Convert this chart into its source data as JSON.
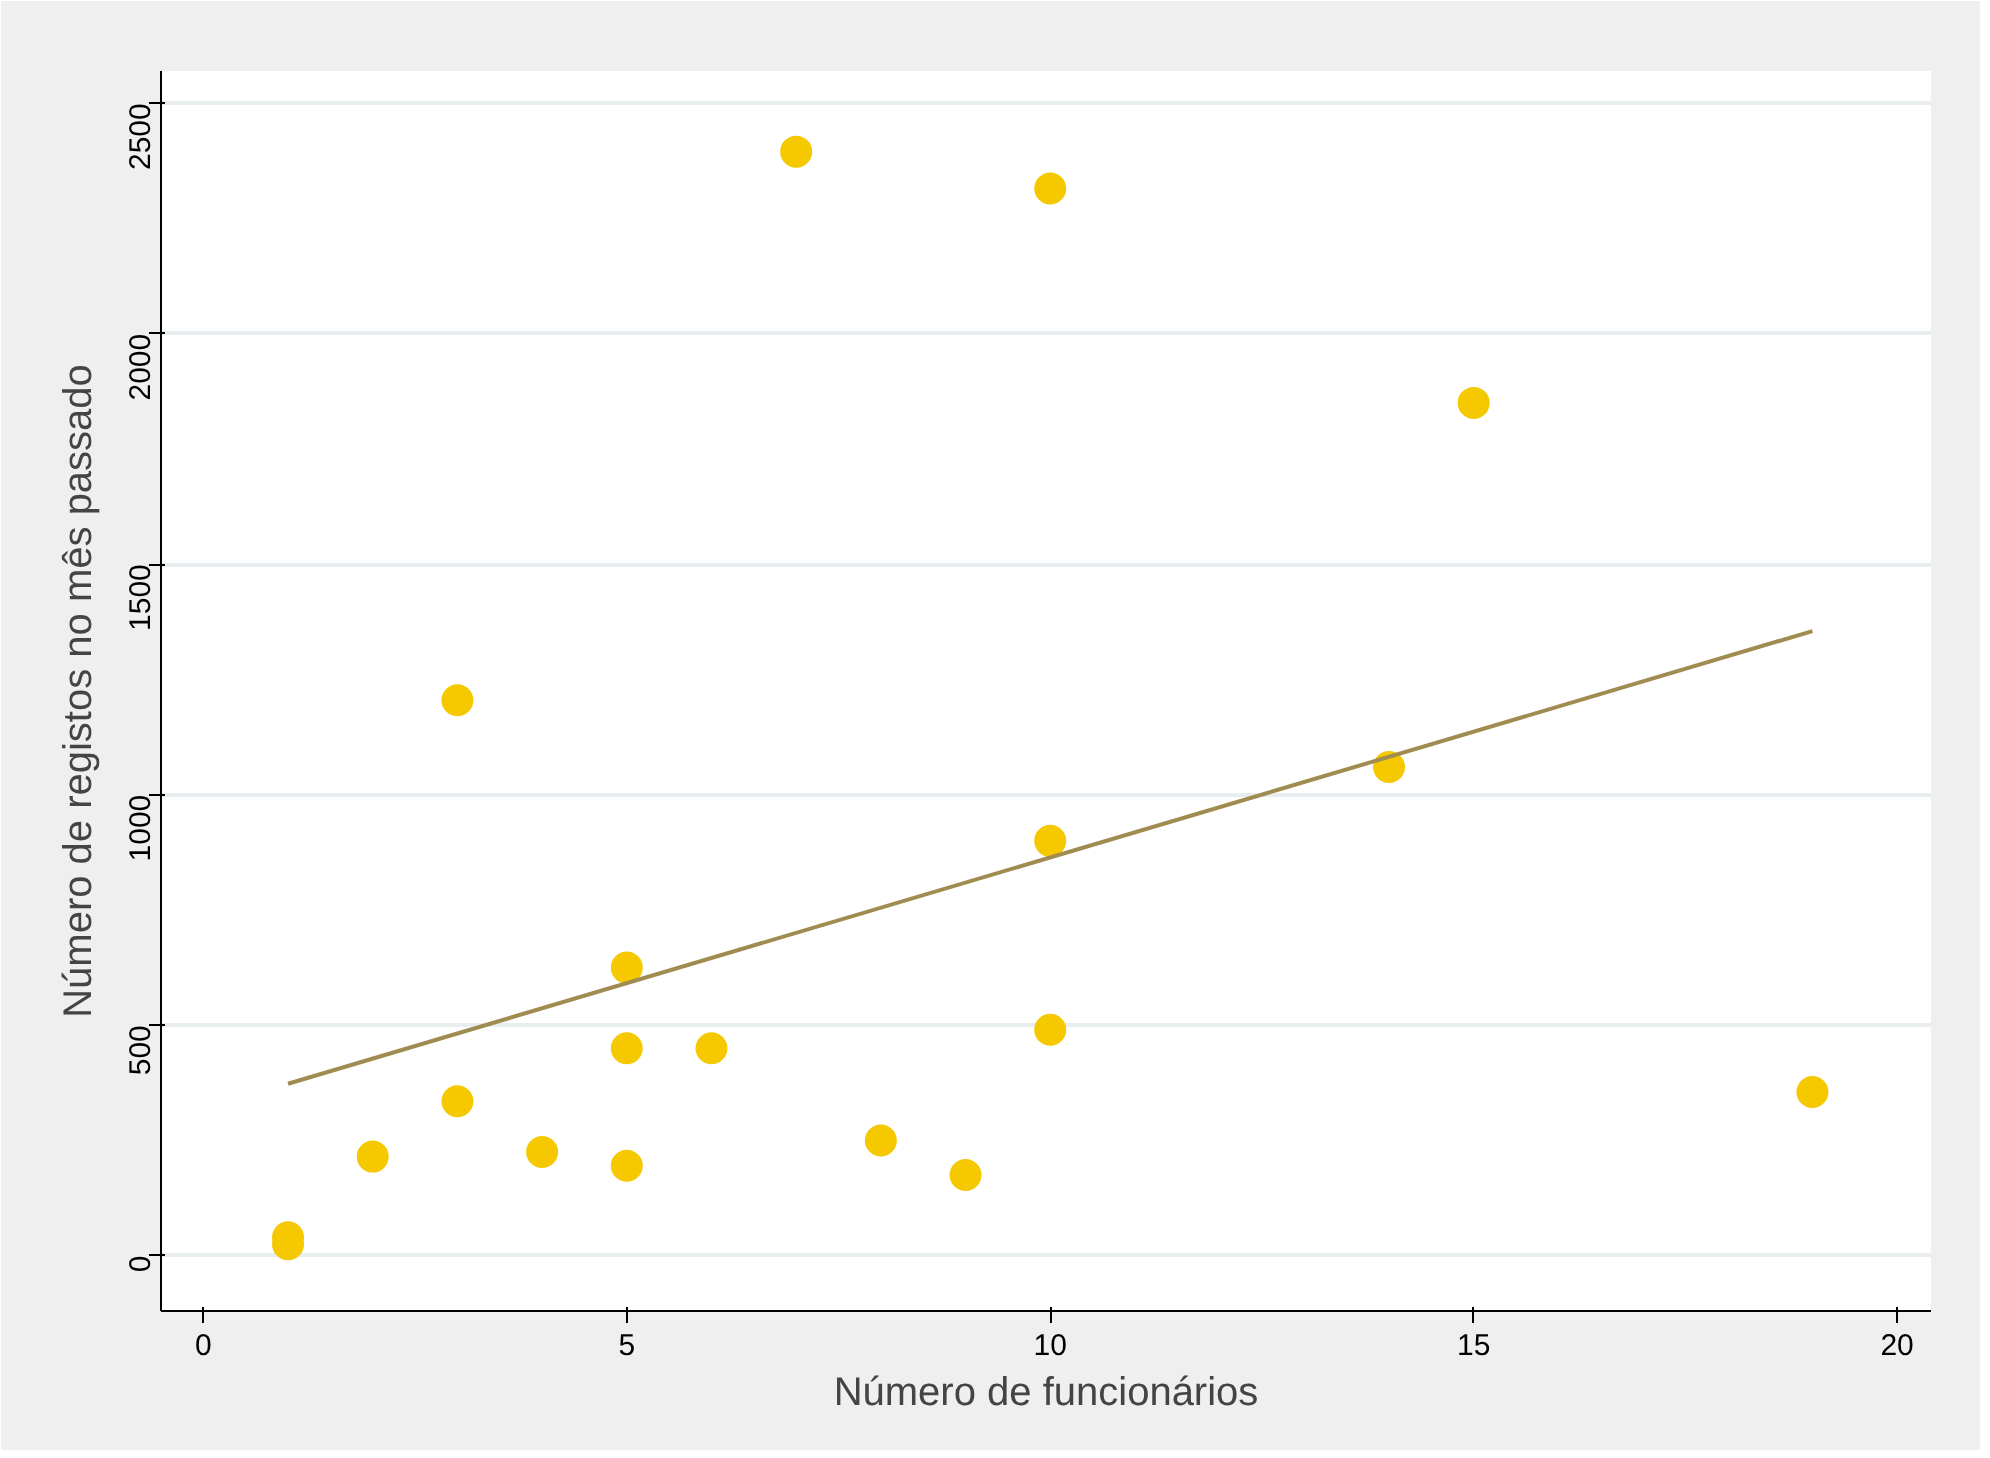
{
  "chart_data": {
    "type": "scatter",
    "xlabel": "Número de funcionários",
    "ylabel": "Número de registos no mês passado",
    "xlim": [
      -0.5,
      20.4
    ],
    "ylim": [
      -120,
      2570
    ],
    "xticks": [
      0,
      5,
      10,
      15,
      20
    ],
    "yticks": [
      0,
      500,
      1000,
      1500,
      2000,
      2500
    ],
    "grid": "y",
    "series": [
      {
        "color": "#f5c800",
        "marker": "circle",
        "x": [
          1,
          1,
          2,
          3,
          3,
          4,
          5,
          5,
          5,
          6,
          7,
          8,
          9,
          10,
          10,
          10,
          14,
          15,
          19
        ],
        "values": [
          40,
          25,
          215,
          335,
          1205,
          225,
          195,
          450,
          625,
          450,
          2395,
          250,
          175,
          2315,
          900,
          490,
          1060,
          1850,
          355
        ]
      },
      {
        "type": "line",
        "marker": "none",
        "color": "#a08c50",
        "x": [
          1,
          19
        ],
        "values": [
          373,
          1355
        ]
      }
    ]
  }
}
